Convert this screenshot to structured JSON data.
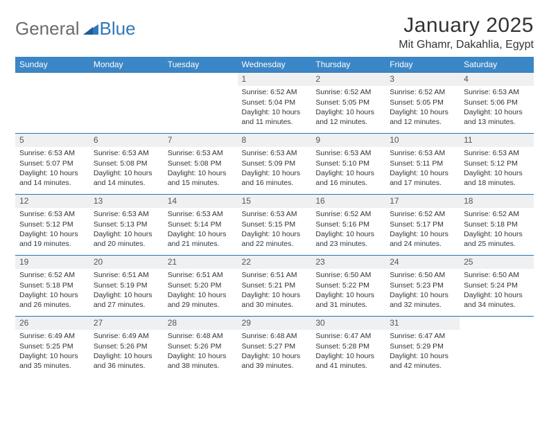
{
  "logo": {
    "part1": "General",
    "part2": "Blue"
  },
  "title": "January 2025",
  "location": "Mit Ghamr, Dakahlia, Egypt",
  "colors": {
    "header_bg": "#3b86c6",
    "header_text": "#ffffff",
    "daynum_bg": "#eef0f2",
    "rule": "#2f6fa8",
    "logo_gray": "#6b6b6b",
    "logo_blue": "#2f79b9",
    "body_text": "#333333"
  },
  "day_headers": [
    "Sunday",
    "Monday",
    "Tuesday",
    "Wednesday",
    "Thursday",
    "Friday",
    "Saturday"
  ],
  "weeks": [
    [
      {
        "n": "",
        "lines": []
      },
      {
        "n": "",
        "lines": []
      },
      {
        "n": "",
        "lines": []
      },
      {
        "n": "1",
        "lines": [
          "Sunrise: 6:52 AM",
          "Sunset: 5:04 PM",
          "Daylight: 10 hours and 11 minutes."
        ]
      },
      {
        "n": "2",
        "lines": [
          "Sunrise: 6:52 AM",
          "Sunset: 5:05 PM",
          "Daylight: 10 hours and 12 minutes."
        ]
      },
      {
        "n": "3",
        "lines": [
          "Sunrise: 6:52 AM",
          "Sunset: 5:05 PM",
          "Daylight: 10 hours and 12 minutes."
        ]
      },
      {
        "n": "4",
        "lines": [
          "Sunrise: 6:53 AM",
          "Sunset: 5:06 PM",
          "Daylight: 10 hours and 13 minutes."
        ]
      }
    ],
    [
      {
        "n": "5",
        "lines": [
          "Sunrise: 6:53 AM",
          "Sunset: 5:07 PM",
          "Daylight: 10 hours and 14 minutes."
        ]
      },
      {
        "n": "6",
        "lines": [
          "Sunrise: 6:53 AM",
          "Sunset: 5:08 PM",
          "Daylight: 10 hours and 14 minutes."
        ]
      },
      {
        "n": "7",
        "lines": [
          "Sunrise: 6:53 AM",
          "Sunset: 5:08 PM",
          "Daylight: 10 hours and 15 minutes."
        ]
      },
      {
        "n": "8",
        "lines": [
          "Sunrise: 6:53 AM",
          "Sunset: 5:09 PM",
          "Daylight: 10 hours and 16 minutes."
        ]
      },
      {
        "n": "9",
        "lines": [
          "Sunrise: 6:53 AM",
          "Sunset: 5:10 PM",
          "Daylight: 10 hours and 16 minutes."
        ]
      },
      {
        "n": "10",
        "lines": [
          "Sunrise: 6:53 AM",
          "Sunset: 5:11 PM",
          "Daylight: 10 hours and 17 minutes."
        ]
      },
      {
        "n": "11",
        "lines": [
          "Sunrise: 6:53 AM",
          "Sunset: 5:12 PM",
          "Daylight: 10 hours and 18 minutes."
        ]
      }
    ],
    [
      {
        "n": "12",
        "lines": [
          "Sunrise: 6:53 AM",
          "Sunset: 5:12 PM",
          "Daylight: 10 hours and 19 minutes."
        ]
      },
      {
        "n": "13",
        "lines": [
          "Sunrise: 6:53 AM",
          "Sunset: 5:13 PM",
          "Daylight: 10 hours and 20 minutes."
        ]
      },
      {
        "n": "14",
        "lines": [
          "Sunrise: 6:53 AM",
          "Sunset: 5:14 PM",
          "Daylight: 10 hours and 21 minutes."
        ]
      },
      {
        "n": "15",
        "lines": [
          "Sunrise: 6:53 AM",
          "Sunset: 5:15 PM",
          "Daylight: 10 hours and 22 minutes."
        ]
      },
      {
        "n": "16",
        "lines": [
          "Sunrise: 6:52 AM",
          "Sunset: 5:16 PM",
          "Daylight: 10 hours and 23 minutes."
        ]
      },
      {
        "n": "17",
        "lines": [
          "Sunrise: 6:52 AM",
          "Sunset: 5:17 PM",
          "Daylight: 10 hours and 24 minutes."
        ]
      },
      {
        "n": "18",
        "lines": [
          "Sunrise: 6:52 AM",
          "Sunset: 5:18 PM",
          "Daylight: 10 hours and 25 minutes."
        ]
      }
    ],
    [
      {
        "n": "19",
        "lines": [
          "Sunrise: 6:52 AM",
          "Sunset: 5:18 PM",
          "Daylight: 10 hours and 26 minutes."
        ]
      },
      {
        "n": "20",
        "lines": [
          "Sunrise: 6:51 AM",
          "Sunset: 5:19 PM",
          "Daylight: 10 hours and 27 minutes."
        ]
      },
      {
        "n": "21",
        "lines": [
          "Sunrise: 6:51 AM",
          "Sunset: 5:20 PM",
          "Daylight: 10 hours and 29 minutes."
        ]
      },
      {
        "n": "22",
        "lines": [
          "Sunrise: 6:51 AM",
          "Sunset: 5:21 PM",
          "Daylight: 10 hours and 30 minutes."
        ]
      },
      {
        "n": "23",
        "lines": [
          "Sunrise: 6:50 AM",
          "Sunset: 5:22 PM",
          "Daylight: 10 hours and 31 minutes."
        ]
      },
      {
        "n": "24",
        "lines": [
          "Sunrise: 6:50 AM",
          "Sunset: 5:23 PM",
          "Daylight: 10 hours and 32 minutes."
        ]
      },
      {
        "n": "25",
        "lines": [
          "Sunrise: 6:50 AM",
          "Sunset: 5:24 PM",
          "Daylight: 10 hours and 34 minutes."
        ]
      }
    ],
    [
      {
        "n": "26",
        "lines": [
          "Sunrise: 6:49 AM",
          "Sunset: 5:25 PM",
          "Daylight: 10 hours and 35 minutes."
        ]
      },
      {
        "n": "27",
        "lines": [
          "Sunrise: 6:49 AM",
          "Sunset: 5:26 PM",
          "Daylight: 10 hours and 36 minutes."
        ]
      },
      {
        "n": "28",
        "lines": [
          "Sunrise: 6:48 AM",
          "Sunset: 5:26 PM",
          "Daylight: 10 hours and 38 minutes."
        ]
      },
      {
        "n": "29",
        "lines": [
          "Sunrise: 6:48 AM",
          "Sunset: 5:27 PM",
          "Daylight: 10 hours and 39 minutes."
        ]
      },
      {
        "n": "30",
        "lines": [
          "Sunrise: 6:47 AM",
          "Sunset: 5:28 PM",
          "Daylight: 10 hours and 41 minutes."
        ]
      },
      {
        "n": "31",
        "lines": [
          "Sunrise: 6:47 AM",
          "Sunset: 5:29 PM",
          "Daylight: 10 hours and 42 minutes."
        ]
      },
      {
        "n": "",
        "lines": []
      }
    ]
  ]
}
